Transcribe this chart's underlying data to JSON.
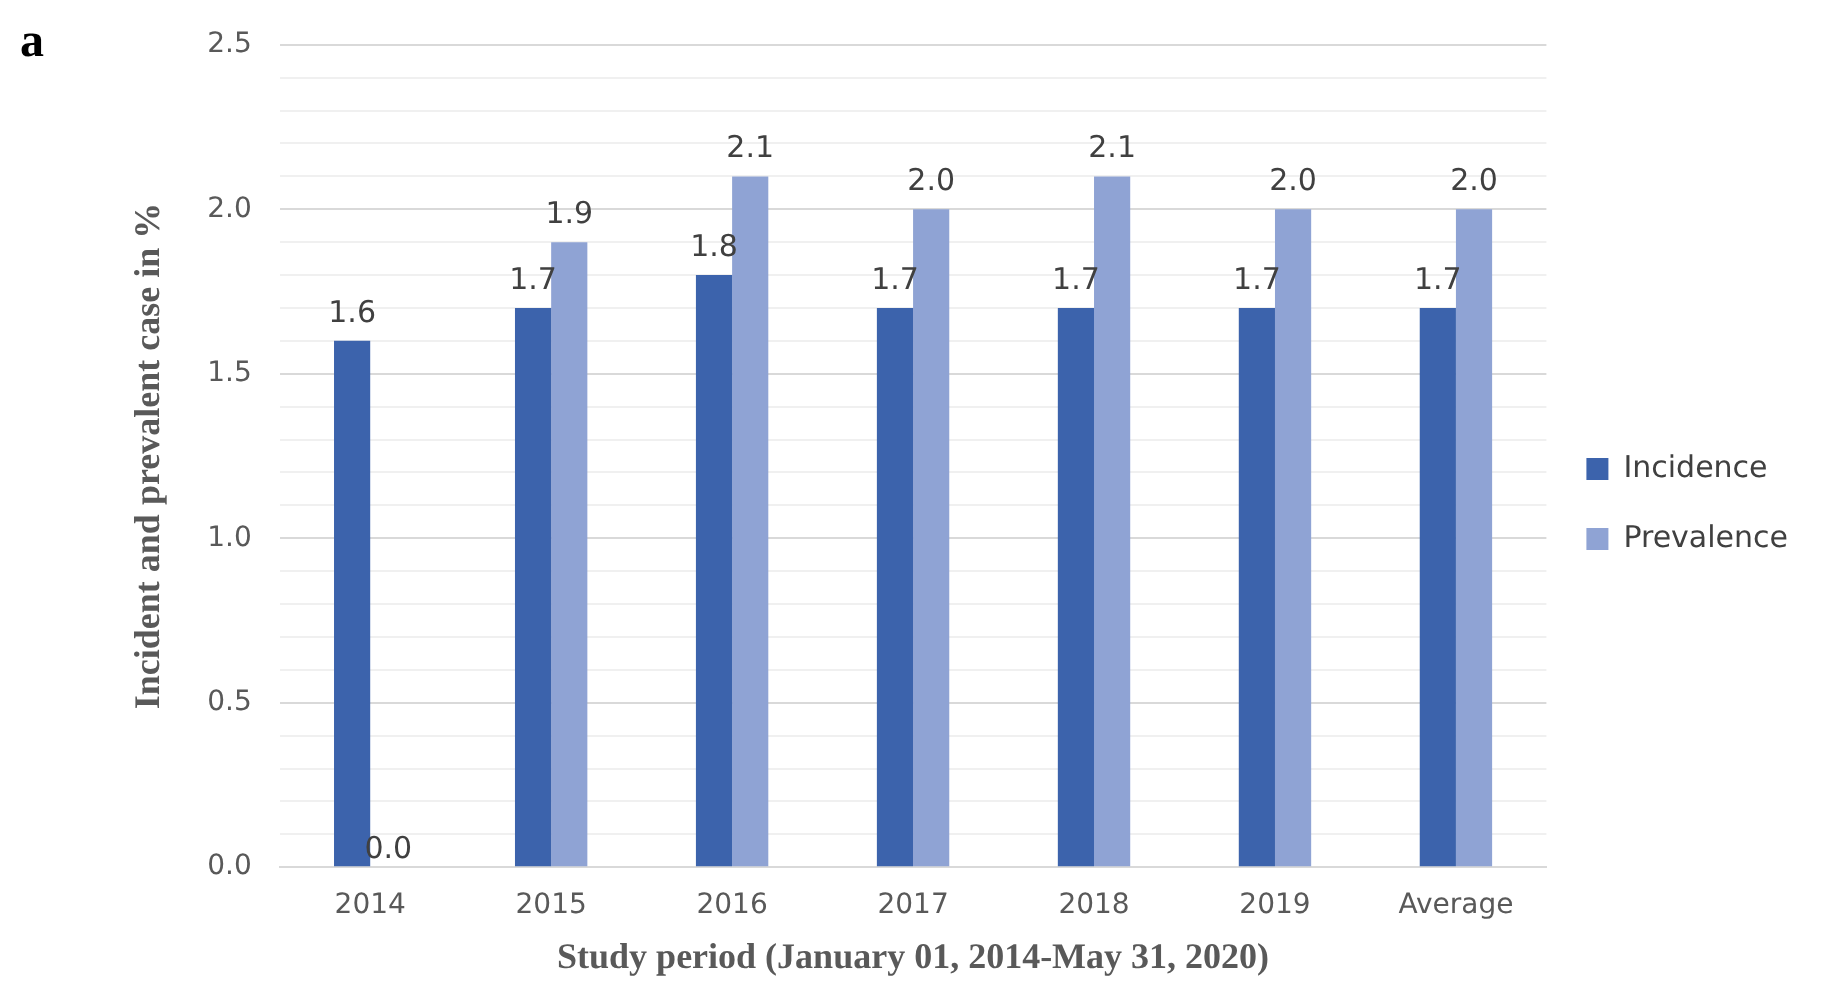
{
  "chart_data": {
    "type": "bar",
    "xlabel": "Study period (January 01, 2014-May 31, 2020)",
    "ylabel": "Incident and prevalent case in %",
    "annotations": [
      "a"
    ],
    "categories": [
      "2014",
      "2015",
      "2016",
      "2017",
      "2018",
      "2019",
      "Average"
    ],
    "series": [
      {
        "name": "Incidence",
        "color": "#3c63ac",
        "values": [
          1.6,
          1.7,
          1.8,
          1.7,
          1.7,
          1.7,
          1.7
        ],
        "value_labels": [
          "1.6",
          "1.7",
          "1.8",
          "1.7",
          "1.7",
          "1.7",
          "1.7"
        ]
      },
      {
        "name": "Prevalence",
        "color": "#8fa3d4",
        "values": [
          0,
          1.9,
          2.1,
          2.0,
          2.1,
          2.0,
          2.0
        ],
        "value_labels": [
          "0.0",
          "1.9",
          "2.1",
          "2.0",
          "2.1",
          "2.0",
          "2.0"
        ]
      }
    ],
    "ylim": [
      0,
      2.5
    ],
    "yticks": [
      {
        "value": 0,
        "label": "0.0"
      },
      {
        "value": 0.1,
        "label": null
      },
      {
        "value": 0.2,
        "label": null
      },
      {
        "value": 0.3,
        "label": null
      },
      {
        "value": 0.4,
        "label": null
      },
      {
        "value": 0.5,
        "label": "0.5"
      },
      {
        "value": 0.6,
        "label": null
      },
      {
        "value": 0.7,
        "label": null
      },
      {
        "value": 0.8,
        "label": null
      },
      {
        "value": 0.9,
        "label": null
      },
      {
        "value": 1,
        "label": "1.0"
      },
      {
        "value": 1.1,
        "label": null
      },
      {
        "value": 1.2,
        "label": null
      },
      {
        "value": 1.3,
        "label": null
      },
      {
        "value": 1.4,
        "label": null
      },
      {
        "value": 1.5,
        "label": "1.5"
      },
      {
        "value": 1.6,
        "label": null
      },
      {
        "value": 1.7,
        "label": null
      },
      {
        "value": 1.8,
        "label": null
      },
      {
        "value": 1.9,
        "label": null
      },
      {
        "value": 2,
        "label": "2.0"
      },
      {
        "value": 2.1,
        "label": null
      },
      {
        "value": 2.2,
        "label": null
      },
      {
        "value": 2.3,
        "label": null
      },
      {
        "value": 2.4,
        "label": null
      },
      {
        "value": 2.5,
        "label": "2.5"
      }
    ],
    "grid": "y",
    "legend": "right"
  }
}
